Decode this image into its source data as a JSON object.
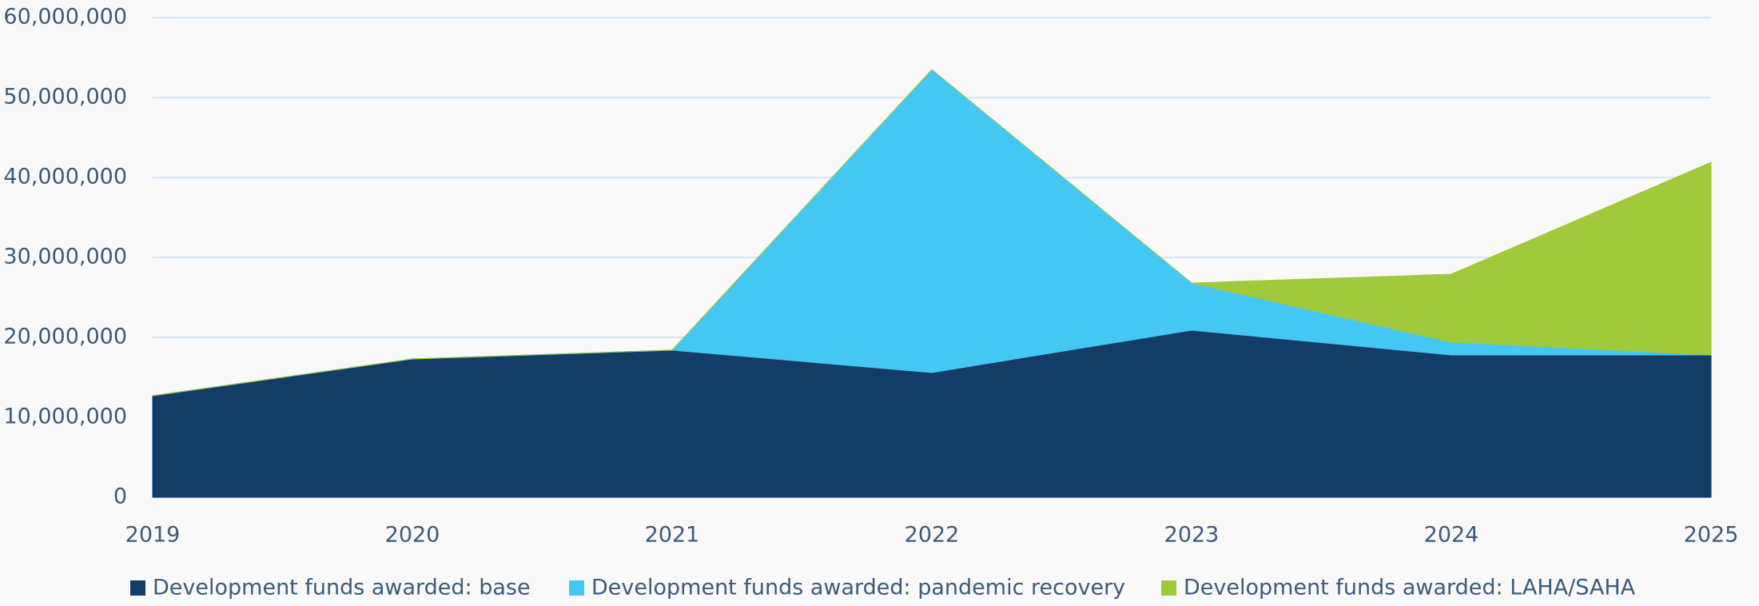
{
  "chart_data": {
    "type": "stacked_area",
    "categories": [
      "2019",
      "2020",
      "2021",
      "2022",
      "2023",
      "2024",
      "2025"
    ],
    "series": [
      {
        "name": "Development funds awarded: base",
        "color": "#133c66",
        "values": [
          12700000,
          17300000,
          18400000,
          15600000,
          20900000,
          17800000,
          17800000
        ]
      },
      {
        "name": "Development funds awarded: pandemic recovery",
        "color": "#45c7f4",
        "values": [
          0,
          0,
          0,
          37900000,
          5900000,
          1600000,
          0
        ]
      },
      {
        "name": "Development funds awarded: LAHA/SAHA",
        "color": "#a0c93c",
        "values": [
          0,
          0,
          0,
          0,
          0,
          8500000,
          24100000
        ]
      }
    ],
    "ylim": [
      0,
      60000000
    ],
    "yticks": [
      0,
      {
        "value": 10000000,
        "label": "10,000,000"
      },
      {
        "value": 20000000,
        "label": "20,000,000"
      },
      {
        "value": 30000000,
        "label": "30,000,000"
      },
      {
        "value": 40000000,
        "label": "40,000,000"
      },
      {
        "value": 50000000,
        "label": "50,000,000"
      },
      {
        "value": 60000000,
        "label": "60,000,000"
      }
    ],
    "grid": true,
    "legend": "bottom"
  }
}
